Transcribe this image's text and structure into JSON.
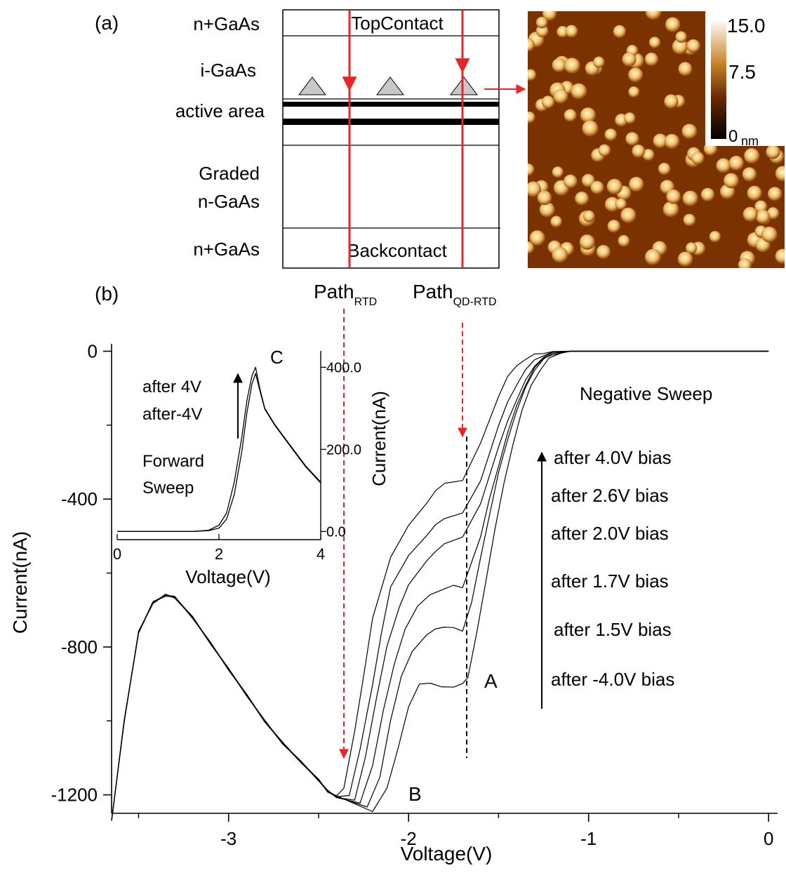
{
  "panel_a": {
    "label": "(a)",
    "left_labels": {
      "top_layer": "n+GaAs",
      "igaas": "i-GaAs",
      "active": "active area",
      "graded_1": "Graded",
      "graded_2": "n-GaAs",
      "bottom_layer": "n+GaAs"
    },
    "top_contact": "TopContact",
    "back_contact": "Backcontact",
    "afm_scale": {
      "max": "15.0",
      "mid": "7.5",
      "min": "0",
      "unit": "nm"
    },
    "colors": {
      "path_line": "#e8262a",
      "dot_fill": "#c8c8c8",
      "afm_bg": "#7a3300",
      "afm_dot": "#f5d690"
    }
  },
  "panel_b": {
    "label": "(b)",
    "path_rtd_main": "Path",
    "path_rtd_sub": "RTD",
    "path_qd_main": "Path",
    "path_qd_sub": "QD-RTD",
    "point_labels": {
      "a": "A",
      "b": "B",
      "c": "C"
    },
    "negative_sweep": "Negative Sweep",
    "bias_labels": [
      "after 4.0V bias",
      "after 2.6V bias",
      "after 2.0V bias",
      "after 1.7V bias",
      "after 1.5V bias",
      "after -4.0V bias"
    ],
    "inset": {
      "line1": "after 4V",
      "line2": "after-4V",
      "line3": "Forward",
      "line4": "Sweep"
    }
  },
  "chart_data": [
    {
      "type": "line",
      "xlabel": "Voltage(V)",
      "ylabel": "Current(nA)",
      "xlim": [
        -3.65,
        0.05
      ],
      "ylim": [
        -1250,
        20
      ],
      "xticks": [
        -3,
        -2,
        -1,
        0
      ],
      "yticks": [
        0,
        -400,
        -800,
        -1200
      ],
      "xtick_labels": [
        "-3",
        "-2",
        "-1",
        "0"
      ],
      "ytick_labels": [
        "0",
        "-400",
        "-800",
        "-1200"
      ],
      "common_x": [
        -3.65,
        -3.58,
        -3.5,
        -3.42,
        -3.35,
        -3.3,
        -3.2,
        -3.1,
        -3.0,
        -2.9,
        -2.8,
        -2.7,
        -2.6,
        -2.5,
        -2.45,
        -2.4
      ],
      "common_y": [
        -1270,
        -1000,
        -760,
        -680,
        -660,
        -665,
        -720,
        -790,
        -860,
        -930,
        -1000,
        -1060,
        -1110,
        -1160,
        -1190,
        -1205
      ],
      "series": [
        {
          "x": [
            -2.4,
            -2.36,
            -2.3,
            -2.25,
            -2.2,
            -2.1,
            -2.0,
            -1.9,
            -1.85,
            -1.8,
            -1.7,
            -1.6,
            -1.5,
            -1.45,
            -1.4,
            -1.35,
            -1.3,
            -1.25,
            -1.2,
            -1.1,
            -1.0,
            0.0
          ],
          "y": [
            -1205,
            -1180,
            -1030,
            -880,
            -720,
            -560,
            -470,
            -410,
            -380,
            -355,
            -350,
            -250,
            -120,
            -70,
            -40,
            -20,
            -10,
            -5,
            0,
            0,
            0,
            0
          ]
        },
        {
          "x": [
            -2.4,
            -2.33,
            -2.27,
            -2.2,
            -2.15,
            -2.1,
            -2.0,
            -1.9,
            -1.85,
            -1.8,
            -1.7,
            -1.6,
            -1.5,
            -1.45,
            -1.4,
            -1.35,
            -1.3,
            -1.25,
            -1.2,
            -1.1,
            -1.0,
            0.0
          ],
          "y": [
            -1205,
            -1200,
            -1080,
            -900,
            -760,
            -640,
            -550,
            -500,
            -470,
            -450,
            -440,
            -350,
            -200,
            -140,
            -90,
            -50,
            -25,
            -10,
            -3,
            0,
            0,
            0
          ]
        },
        {
          "x": [
            -2.4,
            -2.3,
            -2.24,
            -2.18,
            -2.12,
            -2.05,
            -2.0,
            -1.9,
            -1.85,
            -1.8,
            -1.7,
            -1.6,
            -1.5,
            -1.45,
            -1.4,
            -1.35,
            -1.3,
            -1.25,
            -1.2,
            -1.1,
            -1.0,
            0.0
          ],
          "y": [
            -1205,
            -1215,
            -1100,
            -940,
            -800,
            -690,
            -630,
            -570,
            -540,
            -520,
            -505,
            -410,
            -260,
            -190,
            -130,
            -80,
            -40,
            -15,
            -5,
            0,
            0,
            0
          ]
        },
        {
          "x": [
            -2.4,
            -2.27,
            -2.2,
            -2.14,
            -2.08,
            -2.02,
            -1.95,
            -1.88,
            -1.8,
            -1.75,
            -1.7,
            -1.6,
            -1.55,
            -1.5,
            -1.45,
            -1.4,
            -1.35,
            -1.3,
            -1.25,
            -1.2,
            -1.1,
            -1.0,
            0.0
          ],
          "y": [
            -1205,
            -1225,
            -1120,
            -970,
            -850,
            -750,
            -690,
            -660,
            -640,
            -635,
            -640,
            -500,
            -400,
            -310,
            -220,
            -150,
            -90,
            -45,
            -20,
            -7,
            0,
            0,
            0
          ]
        },
        {
          "x": [
            -2.4,
            -2.23,
            -2.16,
            -2.1,
            -2.04,
            -1.98,
            -1.9,
            -1.85,
            -1.8,
            -1.75,
            -1.7,
            -1.65,
            -1.6,
            -1.55,
            -1.5,
            -1.45,
            -1.4,
            -1.35,
            -1.3,
            -1.25,
            -1.2,
            -1.1,
            -1.0,
            0.0
          ],
          "y": [
            -1205,
            -1235,
            -1150,
            -1000,
            -880,
            -810,
            -770,
            -750,
            -745,
            -750,
            -755,
            -680,
            -560,
            -440,
            -330,
            -240,
            -160,
            -100,
            -50,
            -20,
            -8,
            0,
            0,
            0
          ]
        },
        {
          "x": [
            -2.4,
            -2.2,
            -2.12,
            -2.06,
            -2.0,
            -1.94,
            -1.88,
            -1.82,
            -1.75,
            -1.7,
            -1.67,
            -1.62,
            -1.57,
            -1.52,
            -1.47,
            -1.42,
            -1.37,
            -1.32,
            -1.27,
            -1.22,
            -1.15,
            -1.1,
            -1.0,
            0.0
          ],
          "y": [
            -1205,
            -1245,
            -1180,
            -1080,
            -960,
            -900,
            -900,
            -905,
            -910,
            -900,
            -880,
            -760,
            -620,
            -480,
            -360,
            -250,
            -160,
            -95,
            -50,
            -20,
            -5,
            0,
            0,
            0
          ]
        }
      ]
    },
    {
      "type": "line",
      "xlabel": "Voltage(V)",
      "ylabel": "Current(nA)",
      "xlim": [
        0,
        4
      ],
      "ylim": [
        -20,
        440
      ],
      "xticks": [
        0,
        2,
        4
      ],
      "yticks": [
        0,
        200,
        400
      ],
      "xtick_labels": [
        "0",
        "2",
        "4"
      ],
      "ytick_labels": [
        "0.0",
        "200.0",
        "400.0"
      ],
      "series": [
        {
          "x": [
            0,
            1.5,
            1.8,
            2.0,
            2.15,
            2.3,
            2.45,
            2.55,
            2.65,
            2.72,
            2.8,
            2.9,
            3.1,
            3.4,
            3.7,
            4.0
          ],
          "y": [
            0,
            0,
            3,
            15,
            45,
            120,
            230,
            320,
            380,
            400,
            350,
            300,
            260,
            210,
            160,
            120
          ]
        },
        {
          "x": [
            0,
            1.5,
            1.8,
            2.0,
            2.15,
            2.3,
            2.45,
            2.55,
            2.65,
            2.72,
            2.8,
            2.9,
            3.1,
            3.4,
            3.7,
            4.0
          ],
          "y": [
            0,
            0,
            2,
            8,
            30,
            90,
            195,
            290,
            360,
            385,
            345,
            298,
            258,
            208,
            158,
            118
          ]
        }
      ]
    }
  ]
}
